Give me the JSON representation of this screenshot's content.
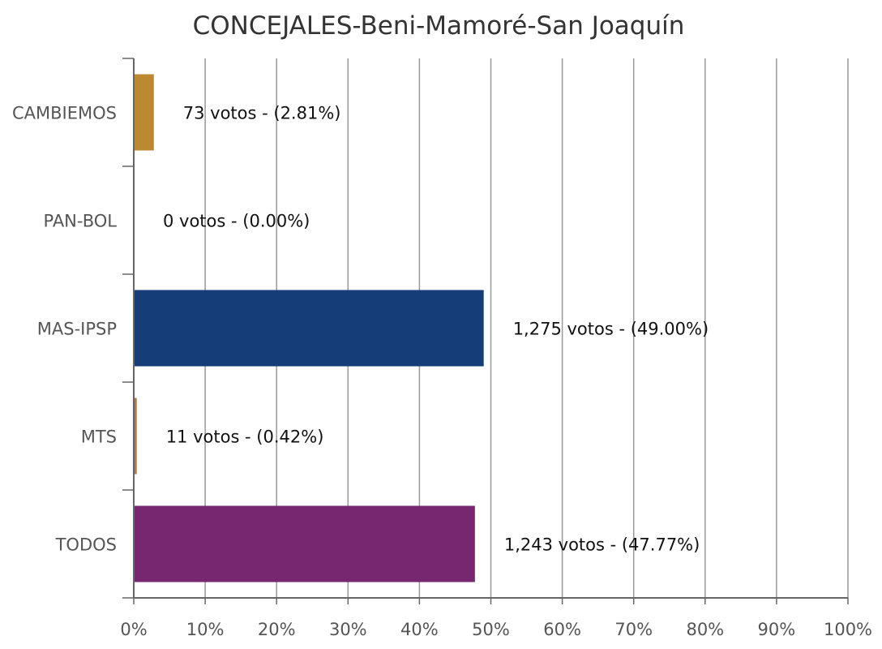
{
  "chart_data": {
    "type": "bar",
    "orientation": "horizontal",
    "title": "CONCEJALES-Beni-Mamoré-San Joaquín",
    "categories": [
      "CAMBIEMOS",
      "PAN-BOL",
      "MAS-IPSP",
      "MTS",
      "TODOS"
    ],
    "values": [
      2.81,
      0.0,
      49.0,
      0.42,
      47.77
    ],
    "votes": [
      73,
      0,
      1275,
      11,
      1243
    ],
    "data_labels": [
      "73 votos - (2.81%)",
      "0 votos - (0.00%)",
      "1,275 votos - (49.00%)",
      "11 votos - (0.42%)",
      "1,243 votos - (47.77%)"
    ],
    "colors": [
      "#BC8830",
      "#BC8830",
      "#153D77",
      "#B07A4A",
      "#772670"
    ],
    "xlim": [
      0,
      100
    ],
    "x_ticks": [
      "0%",
      "10%",
      "20%",
      "30%",
      "40%",
      "50%",
      "60%",
      "70%",
      "80%",
      "90%",
      "100%"
    ],
    "grid": true,
    "legend": "none"
  }
}
